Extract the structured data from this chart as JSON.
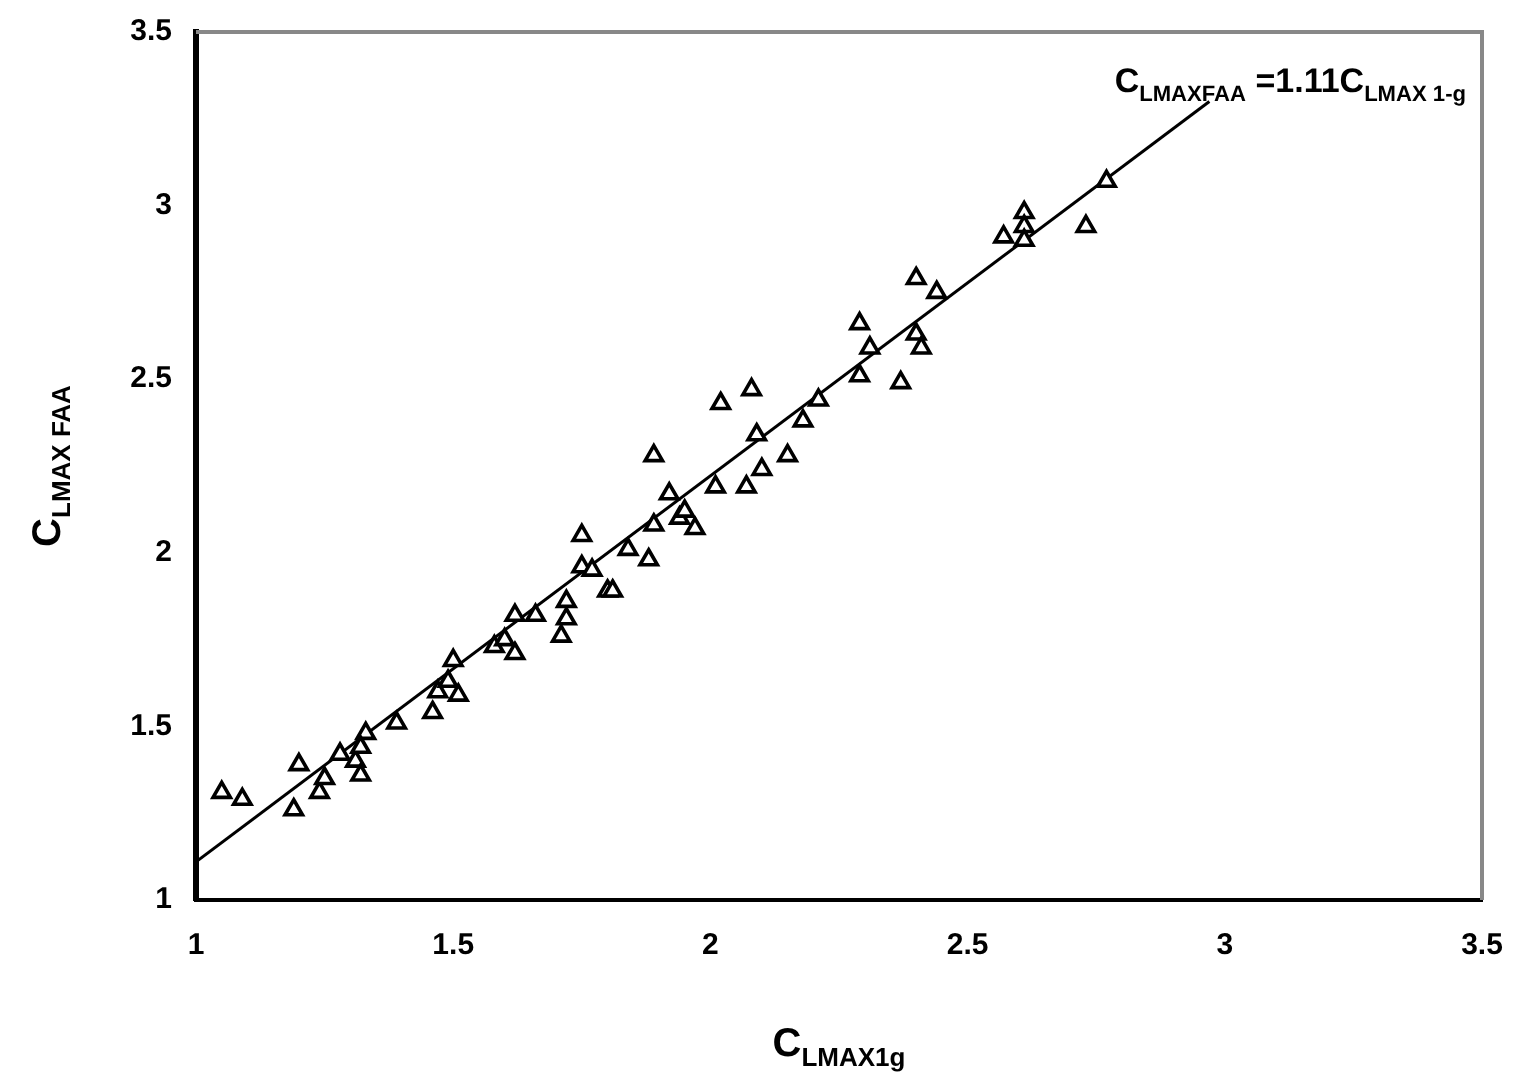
{
  "chart_data": {
    "type": "scatter",
    "xlabel": "C$_{LMAX1g}$",
    "ylabel": "C$_{LMAX FAA}$",
    "annotations": [
      "C$_{LMAXFAA}$ =1.11C$_{LMAX 1-g}$"
    ],
    "xlim": [
      1,
      3.5
    ],
    "ylim": [
      1,
      3.5
    ],
    "xticks": [
      1,
      1.5,
      2,
      2.5,
      3,
      3.5
    ],
    "yticks": [
      1,
      1.5,
      2,
      2.5,
      3,
      3.5
    ],
    "grid": false,
    "legend": false,
    "marker": "triangle",
    "series": [
      {
        "type": "scatter",
        "color": "#000000",
        "x": [
          1.05,
          1.09,
          1.19,
          1.2,
          1.24,
          1.25,
          1.28,
          1.31,
          1.32,
          1.33,
          1.32,
          1.39,
          1.46,
          1.47,
          1.49,
          1.5,
          1.51,
          1.58,
          1.62,
          1.62,
          1.6,
          1.66,
          1.72,
          1.71,
          1.72,
          1.75,
          1.75,
          1.8,
          1.77,
          1.81,
          1.84,
          1.88,
          1.89,
          1.89,
          1.92,
          1.94,
          1.97,
          1.95,
          2.01,
          2.02,
          2.07,
          2.08,
          2.09,
          2.1,
          2.15,
          2.18,
          2.21,
          2.29,
          2.29,
          2.31,
          2.37,
          2.4,
          2.44,
          2.4,
          2.41,
          2.77,
          2.73,
          2.61,
          2.61,
          2.57,
          2.61
        ],
        "values": [
          1.31,
          1.29,
          1.26,
          1.39,
          1.31,
          1.35,
          1.42,
          1.4,
          1.36,
          1.48,
          1.44,
          1.51,
          1.54,
          1.6,
          1.63,
          1.69,
          1.59,
          1.73,
          1.82,
          1.71,
          1.75,
          1.82,
          1.86,
          1.76,
          1.81,
          2.05,
          1.96,
          1.89,
          1.95,
          1.89,
          2.01,
          1.98,
          2.08,
          2.28,
          2.17,
          2.1,
          2.07,
          2.12,
          2.19,
          2.43,
          2.19,
          2.47,
          2.34,
          2.24,
          2.28,
          2.38,
          2.44,
          2.66,
          2.51,
          2.59,
          2.49,
          2.79,
          2.75,
          2.63,
          2.59,
          3.07,
          2.94,
          2.98,
          2.94,
          2.91,
          2.9
        ]
      },
      {
        "type": "line",
        "color": "#000000",
        "x": [
          1,
          2.97
        ],
        "values": [
          1.11,
          3.3
        ],
        "marker": "none",
        "line_style": "solid"
      }
    ]
  }
}
